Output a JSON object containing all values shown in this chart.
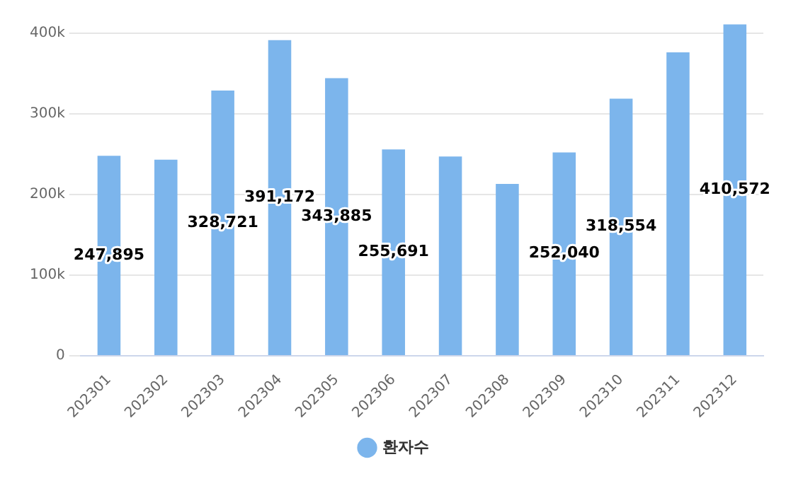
{
  "chart_data": {
    "type": "bar",
    "categories": [
      "202301",
      "202302",
      "202303",
      "202304",
      "202305",
      "202306",
      "202307",
      "202308",
      "202309",
      "202310",
      "202311",
      "202312"
    ],
    "series": [
      {
        "name": "환자수",
        "color": "#7cb5ec",
        "values": [
          247895,
          243000,
          328721,
          391172,
          343885,
          255691,
          247000,
          213000,
          252040,
          318554,
          376000,
          410572
        ],
        "value_labels": [
          "247,895",
          null,
          "328,721",
          "391,172",
          "343,885",
          "255,691",
          null,
          null,
          "252,040",
          "318,554",
          null,
          "410,572"
        ]
      }
    ],
    "ylim": [
      0,
      411000
    ],
    "yticks": [
      {
        "value": 0,
        "label": "0"
      },
      {
        "value": 100000,
        "label": "100k"
      },
      {
        "value": 200000,
        "label": "200k"
      },
      {
        "value": 300000,
        "label": "300k"
      },
      {
        "value": 400000,
        "label": "400k"
      }
    ],
    "grid": "y",
    "legend": "bottom"
  }
}
